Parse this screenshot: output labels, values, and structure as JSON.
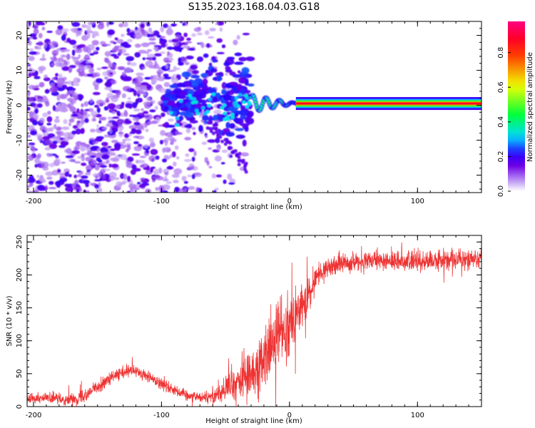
{
  "figure": {
    "title": "S135.2023.168.04.03.G18"
  },
  "chart_data": [
    {
      "type": "heatmap",
      "name": "spectrogram",
      "title": "S135.2023.168.04.03.G18",
      "xlabel": "Height of straight line (km)",
      "ylabel": "Frequency (Hz)",
      "xlim": [
        -205,
        150
      ],
      "ylim": [
        -25,
        24
      ],
      "xticks": [
        -200,
        -100,
        0,
        100
      ],
      "yticks": [
        -20,
        -10,
        0,
        10,
        20
      ],
      "xtick_labels": [
        "-200",
        "-100",
        "0",
        "100"
      ],
      "ytick_labels": [
        "-20",
        "-10",
        "0",
        "10",
        "20"
      ],
      "colorbar": {
        "label": "Normalized spectral amplitude",
        "range": [
          0,
          0.98
        ],
        "ticks": [
          0.0,
          0.2,
          0.4,
          0.6,
          0.8
        ],
        "tick_labels": [
          "0.0",
          "0.2",
          "0.4",
          "0.6",
          "0.8"
        ]
      },
      "features": {
        "noise_region_km": [
          -205,
          -60
        ],
        "ridge_start_km": -30,
        "carrier_line_start_km": 5,
        "carrier_frequency_hz": 0.5,
        "carrier_amplitude": 0.9
      }
    },
    {
      "type": "line",
      "name": "snr",
      "xlabel": "Height of straight line (km)",
      "ylabel": "SNR (10 * v/v)",
      "xlim": [
        -205,
        150
      ],
      "ylim": [
        0,
        260
      ],
      "xticks": [
        -200,
        -100,
        0,
        100
      ],
      "yticks": [
        0,
        50,
        100,
        150,
        200,
        250
      ],
      "xtick_labels": [
        "-200",
        "-100",
        "0",
        "100"
      ],
      "ytick_labels": [
        "0",
        "50",
        "100",
        "150",
        "200",
        "250"
      ],
      "series": [
        {
          "name": "SNR",
          "color": "#ee3333",
          "trend": {
            "x": [
              -205,
              -190,
              -175,
              -165,
              -150,
              -135,
              -122,
              -110,
              -95,
              -80,
              -68,
              -58,
              -48,
              -38,
              -28,
              -18,
              -12,
              -5,
              0,
              5,
              10,
              15,
              20,
              28,
              40,
              60,
              80,
              100,
              120,
              150
            ],
            "y": [
              14,
              13,
              11,
              12,
              30,
              48,
              55,
              45,
              30,
              17,
              14,
              18,
              28,
              40,
              55,
              75,
              100,
              118,
              128,
              140,
              150,
              165,
              195,
              210,
              218,
              220,
              222,
              220,
              222,
              225
            ]
          },
          "noise": {
            "x": [
              -205,
              -150,
              -120,
              -90,
              -70,
              -55,
              -40,
              -20,
              -5,
              10,
              20,
              40,
              150
            ],
            "amp": [
              6,
              8,
              8,
              8,
              6,
              12,
              25,
              40,
              40,
              30,
              14,
              12,
              12
            ]
          }
        }
      ]
    }
  ]
}
